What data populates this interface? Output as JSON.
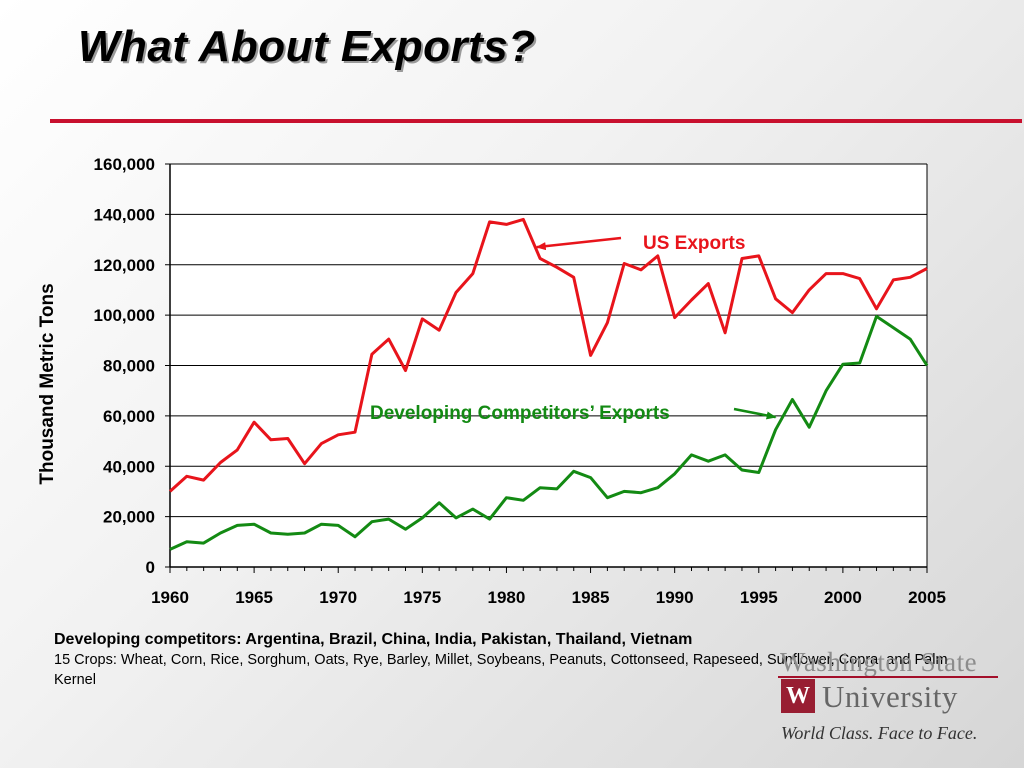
{
  "slide": {
    "title": "What About Exports?",
    "caption_title": "Developing competitors: Argentina, Brazil, China, India, Pakistan, Thailand, Vietnam",
    "caption_body": "15 Crops: Wheat, Corn, Rice, Sorghum, Oats, Rye, Barley, Millet, Soybeans, Peanuts, Cottonseed, Rapeseed, Sunflower, Copra, and Palm Kernel",
    "accent_color": "#c8102e"
  },
  "logo": {
    "line1": "Washington State",
    "line2": "University",
    "mark": "W",
    "tagline": "World Class. Face to Face."
  },
  "chart_data": {
    "type": "line",
    "ylabel": "Thousand Metric Tons",
    "xlabel": "",
    "xlim": [
      1960,
      2005
    ],
    "ylim": [
      0,
      160000
    ],
    "y_ticks": [
      "0",
      "20,000",
      "40,000",
      "60,000",
      "80,000",
      "100,000",
      "120,000",
      "140,000",
      "160,000"
    ],
    "x_ticks": [
      "1960",
      "1965",
      "1970",
      "1975",
      "1980",
      "1985",
      "1990",
      "1995",
      "2000",
      "2005"
    ],
    "x": [
      1960,
      1961,
      1962,
      1963,
      1964,
      1965,
      1966,
      1967,
      1968,
      1969,
      1970,
      1971,
      1972,
      1973,
      1974,
      1975,
      1976,
      1977,
      1978,
      1979,
      1980,
      1981,
      1982,
      1983,
      1984,
      1985,
      1986,
      1987,
      1988,
      1989,
      1990,
      1991,
      1992,
      1993,
      1994,
      1995,
      1996,
      1997,
      1998,
      1999,
      2000,
      2001,
      2002,
      2003,
      2004,
      2005
    ],
    "series": [
      {
        "name": "US Exports",
        "color": "#e8141b",
        "values": [
          30000,
          36000,
          34500,
          41500,
          46500,
          57500,
          50500,
          51000,
          41000,
          49000,
          52500,
          53500,
          84500,
          90500,
          78000,
          98500,
          94000,
          109000,
          116500,
          137000,
          136000,
          138000,
          122500,
          119000,
          115000,
          84000,
          97000,
          120500,
          118000,
          123500,
          99000,
          106000,
          112500,
          93000,
          122500,
          123500,
          106500,
          101000,
          110000,
          116500,
          116500,
          114500,
          102500,
          114000,
          115000,
          118500
        ]
      },
      {
        "name": "Developing Competitors’ Exports",
        "color": "#138a13",
        "values": [
          7000,
          10000,
          9500,
          13500,
          16500,
          17000,
          13500,
          13000,
          13500,
          17000,
          16500,
          12000,
          18000,
          19000,
          15000,
          19500,
          25500,
          19500,
          23000,
          19000,
          27500,
          26500,
          31500,
          31000,
          38000,
          35500,
          27500,
          30000,
          29500,
          31500,
          37000,
          44500,
          42000,
          44500,
          38500,
          37500,
          54500,
          66500,
          55500,
          70000,
          80500,
          81000,
          99500,
          95000,
          90500,
          80000
        ]
      }
    ],
    "annotations": [
      {
        "text": "US Exports",
        "color": "#e8141b",
        "target_x": 1981.8,
        "target_y": 127000
      },
      {
        "text": "Developing Competitors’ Exports",
        "color": "#138a13",
        "target_x": 1996,
        "target_y": 59500
      }
    ],
    "grid": true
  }
}
